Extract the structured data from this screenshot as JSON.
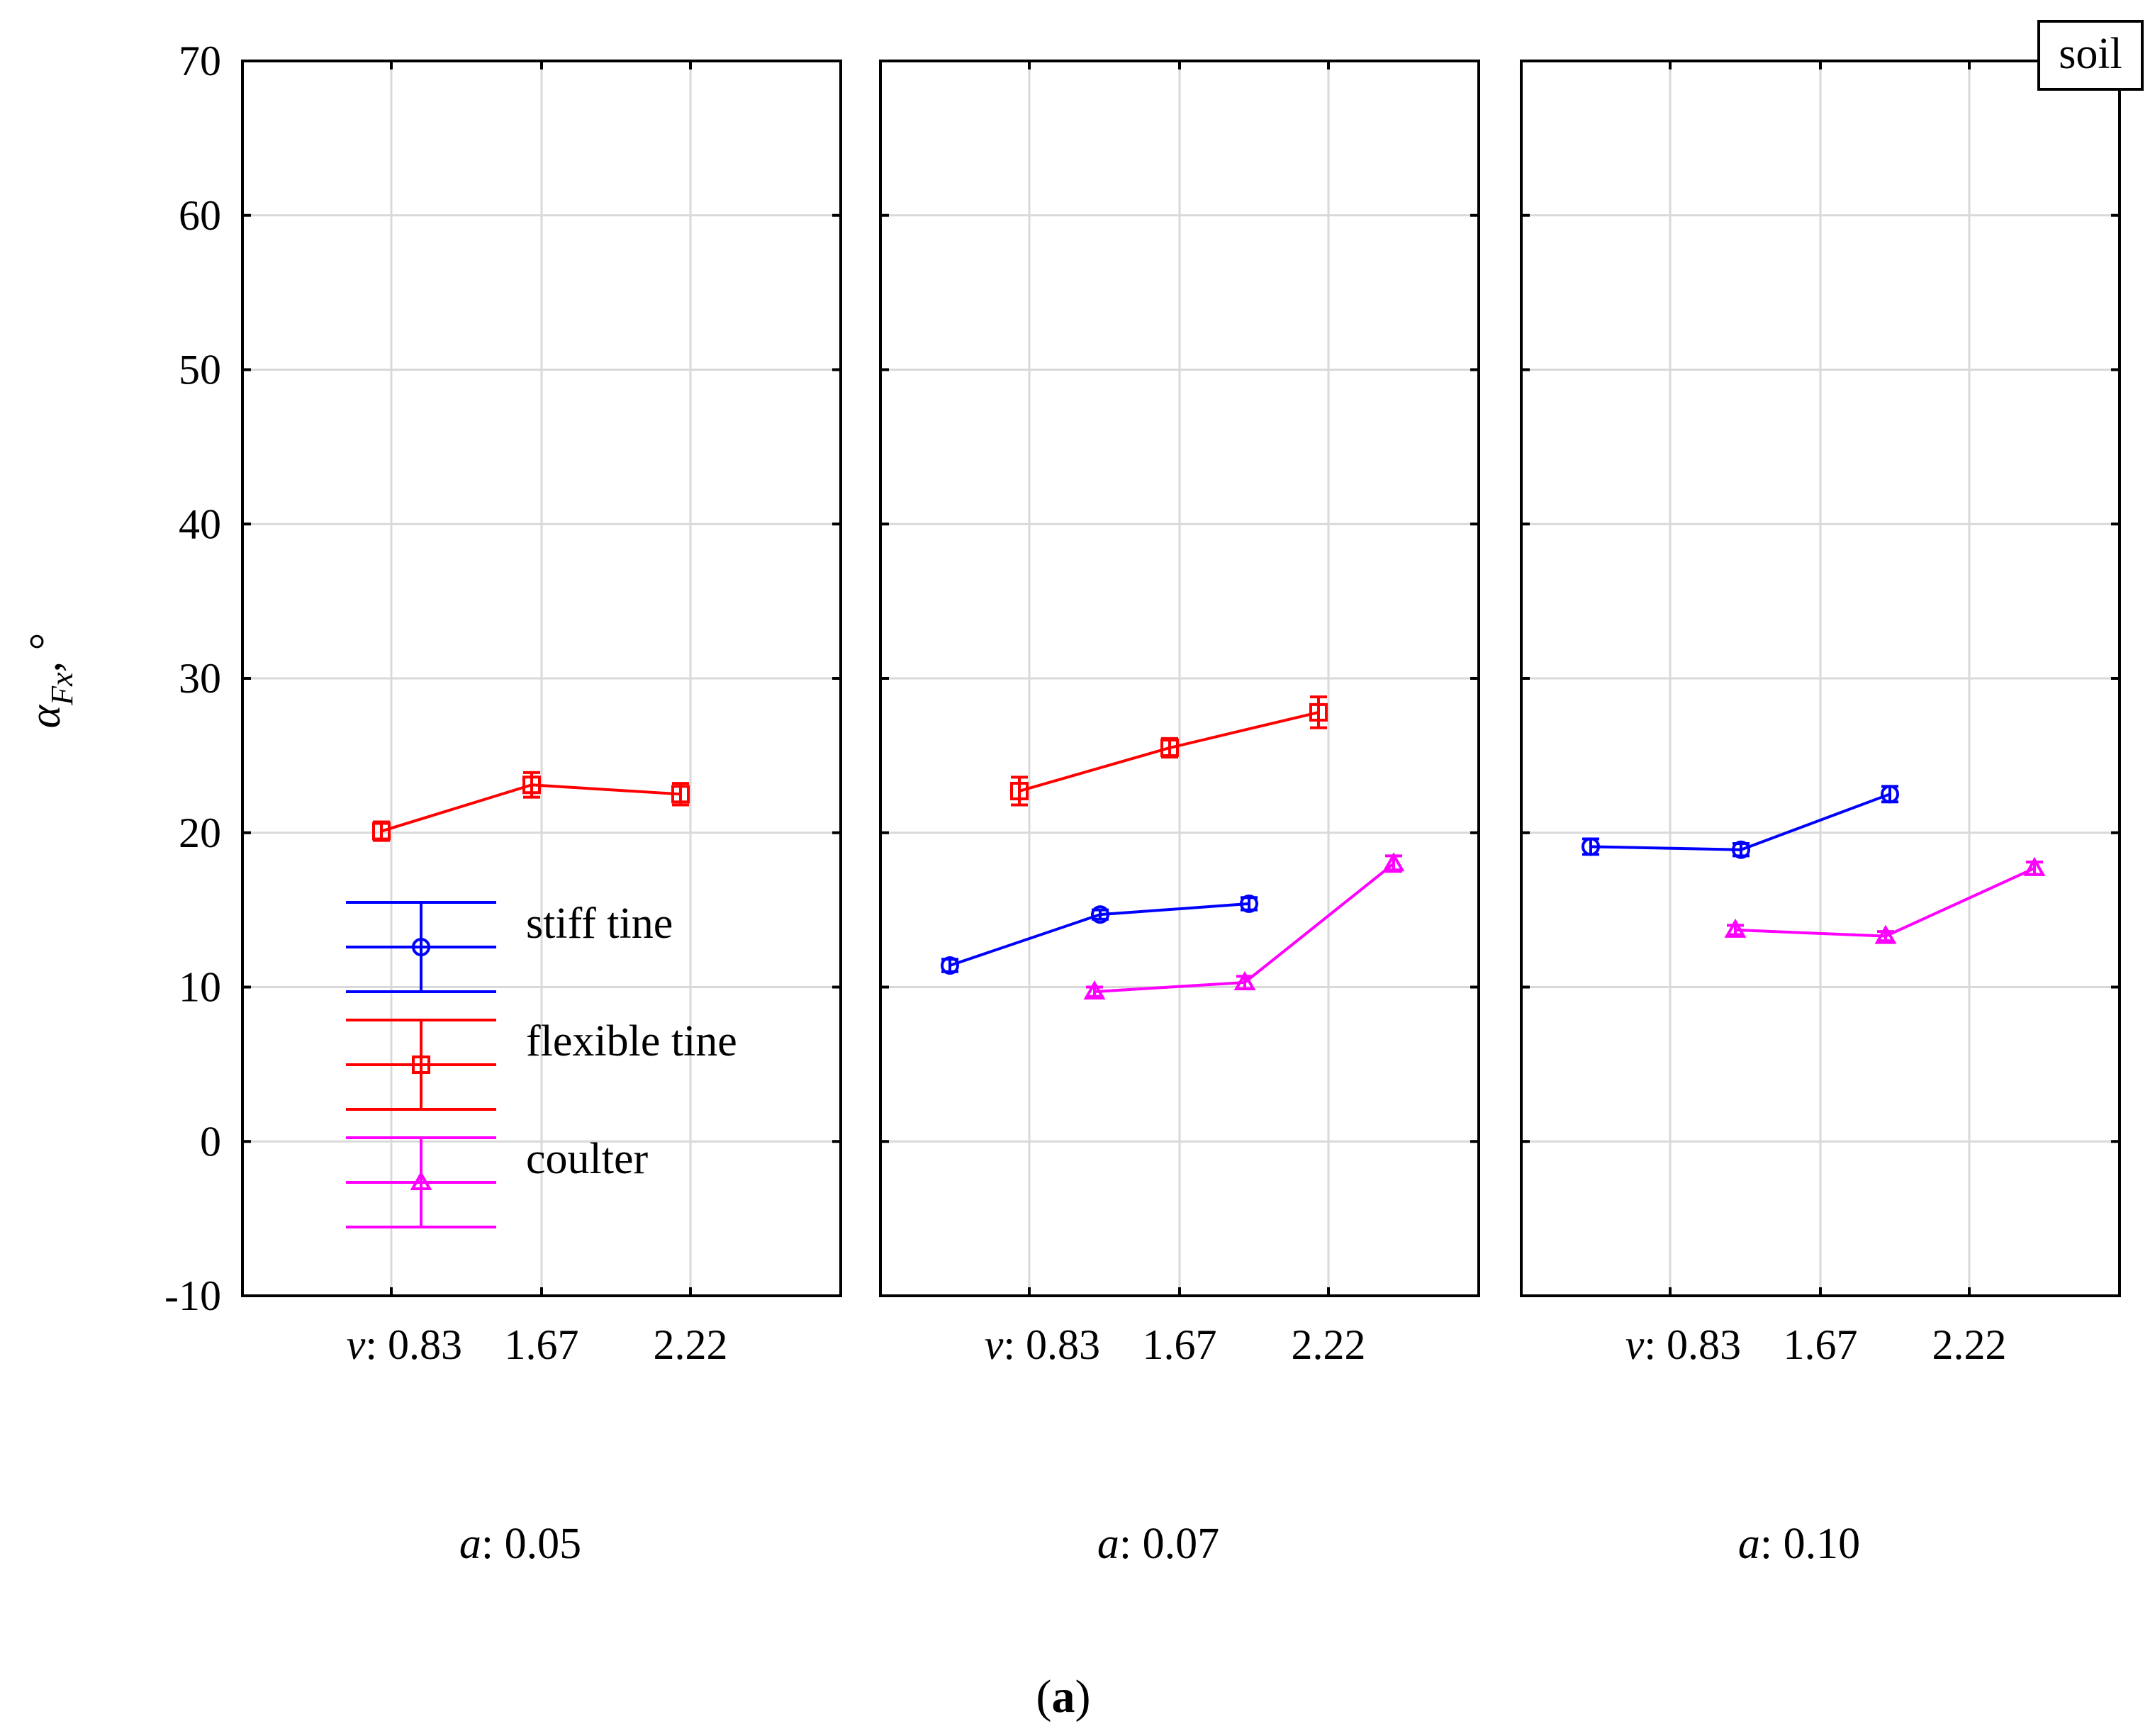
{
  "chart_data": {
    "type": "line",
    "ylabel": "α_Fx, °",
    "ylabel_main": "α",
    "ylabel_sub": "Fx",
    "ylabel_suffix": ", °",
    "ylim": [
      -10,
      70
    ],
    "yticks": [
      -10,
      0,
      10,
      20,
      30,
      40,
      50,
      60,
      70
    ],
    "grid": true,
    "corner_label": "soil",
    "x_factor_name": "v",
    "x_categories": [
      "0.83",
      "1.67",
      "2.22"
    ],
    "panel_factor_name": "a",
    "caption": "(a)",
    "caption_open": "(",
    "caption_letter": "a",
    "caption_close": ")",
    "legend": [
      {
        "name": "stiff tine",
        "color": "#0000ff",
        "marker": "circle"
      },
      {
        "name": "flexible tine",
        "color": "#ff0000",
        "marker": "square"
      },
      {
        "name": "coulter",
        "color": "#ff00ff",
        "marker": "triangle"
      }
    ],
    "panels": [
      {
        "label": "0.05",
        "series": [
          {
            "name": "flexible tine",
            "values": [
              20.1,
              23.1,
              22.5
            ],
            "errors": [
              0.6,
              0.8,
              0.7
            ]
          }
        ]
      },
      {
        "label": "0.07",
        "series": [
          {
            "name": "stiff tine",
            "values": [
              11.4,
              14.7,
              15.4
            ],
            "errors": [
              0.4,
              0.3,
              0.4
            ]
          },
          {
            "name": "flexible tine",
            "values": [
              22.7,
              25.5,
              27.8
            ],
            "errors": [
              0.9,
              0.6,
              1.0
            ]
          },
          {
            "name": "coulter",
            "values": [
              9.7,
              10.3,
              18.0
            ],
            "errors": [
              0.3,
              0.4,
              0.5
            ]
          }
        ]
      },
      {
        "label": "0.10",
        "series": [
          {
            "name": "stiff tine",
            "values": [
              19.1,
              18.9,
              22.5
            ],
            "errors": [
              0.5,
              0.4,
              0.5
            ]
          },
          {
            "name": "coulter",
            "values": [
              13.7,
              13.3,
              17.7
            ],
            "errors": [
              0.3,
              0.3,
              0.4
            ]
          }
        ]
      }
    ]
  }
}
